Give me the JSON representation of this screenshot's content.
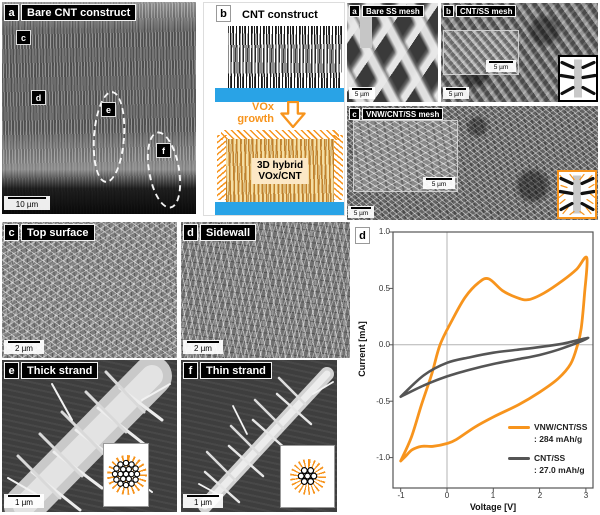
{
  "colors": {
    "accent_orange": "#F7941D",
    "curve_gray": "#555555",
    "substrate_blue": "#29A3E6",
    "header_bg": "#000000"
  },
  "panels": {
    "bare_cnt": {
      "letter": "a",
      "title": "Bare CNT construct",
      "scale": "10 µm",
      "labels": {
        "c": "c",
        "d": "d",
        "e": "e",
        "f": "f"
      }
    },
    "schematic": {
      "letter": "b",
      "title": "CNT construct",
      "growth_line1": "VOx",
      "growth_line2": "growth",
      "product_line1": "3D hybrid",
      "product_line2": "VOx/CNT"
    },
    "bare_ss": {
      "letter": "a",
      "title": "Bare SS mesh",
      "scale": "5 µm"
    },
    "cnt_ss": {
      "letter": "b",
      "title": "CNT/SS mesh",
      "scale": "5 µm",
      "inset_scale": "5 µm"
    },
    "vnw_cnt_ss": {
      "letter": "c",
      "title": "VNW/CNT/SS mesh",
      "scale": "5 µm",
      "inset_scale": "5 µm"
    },
    "top_surface": {
      "letter": "c",
      "title": "Top surface",
      "scale": "2 µm"
    },
    "sidewall": {
      "letter": "d",
      "title": "Sidewall",
      "scale": "2 µm"
    },
    "thick_strand": {
      "letter": "e",
      "title": "Thick strand",
      "scale": "1 µm"
    },
    "thin_strand": {
      "letter": "f",
      "title": "Thin strand",
      "scale": "1 µm"
    },
    "cv_chart": {
      "letter": "d"
    }
  },
  "chart_data": {
    "type": "line",
    "title": "",
    "xlabel": "Voltage [V]",
    "ylabel": "Current [mA]",
    "xlim": [
      -1.17,
      3.15
    ],
    "ylim": [
      -1.27,
      1.0
    ],
    "xticks": [
      -1,
      0,
      1,
      2,
      3
    ],
    "yticks": [
      1.0,
      0.5,
      0.0,
      -0.5,
      -1.0
    ],
    "xtick_labels": [
      "-1",
      "0",
      "1",
      "2",
      "3"
    ],
    "ytick_labels": [
      "1.0",
      "0.5",
      "0.0",
      "-0.5",
      "-1.0"
    ],
    "grid": "zero axis lines only",
    "legend_position": "lower right",
    "series": [
      {
        "name": "VNW/CNT/SS",
        "label2": ": 284 mAh/g",
        "color": "#F7941D",
        "x": [
          -1,
          -0.77,
          -0.55,
          -0.33,
          -0.15,
          0.1,
          0.39,
          0.68,
          0.9,
          1.2,
          1.5,
          1.76,
          2.1,
          2.5,
          2.8,
          3.02,
          2.97,
          2.9,
          2.82,
          2.67,
          2.4,
          2.0,
          1.55,
          1.0,
          0.6,
          0.2,
          0,
          -0.3,
          -0.55,
          -0.75,
          -0.9,
          -1
        ],
        "y": [
          -1.03,
          -0.82,
          -0.53,
          -0.26,
          0,
          0.21,
          0.42,
          0.55,
          0.585,
          0.48,
          0.42,
          0.4,
          0.46,
          0.57,
          0.67,
          0.77,
          0.45,
          0.15,
          0,
          -0.17,
          -0.3,
          -0.42,
          -0.53,
          -0.64,
          -0.73,
          -0.84,
          -0.875,
          -0.9,
          -0.9,
          -0.93,
          -0.99,
          -1.03
        ]
      },
      {
        "name": "CNT/SS",
        "label2": ": 27.0 mAh/g",
        "color": "#555555",
        "x": [
          -1,
          -0.5,
          0,
          0.5,
          1,
          1.5,
          2,
          2.5,
          3.05,
          2.5,
          2,
          1.5,
          1,
          0.5,
          0,
          -0.5,
          -1
        ],
        "y": [
          -0.46,
          -0.27,
          -0.16,
          -0.11,
          -0.07,
          -0.045,
          -0.02,
          0.01,
          0.06,
          -0.03,
          -0.09,
          -0.13,
          -0.17,
          -0.22,
          -0.28,
          -0.36,
          -0.46
        ]
      }
    ]
  }
}
